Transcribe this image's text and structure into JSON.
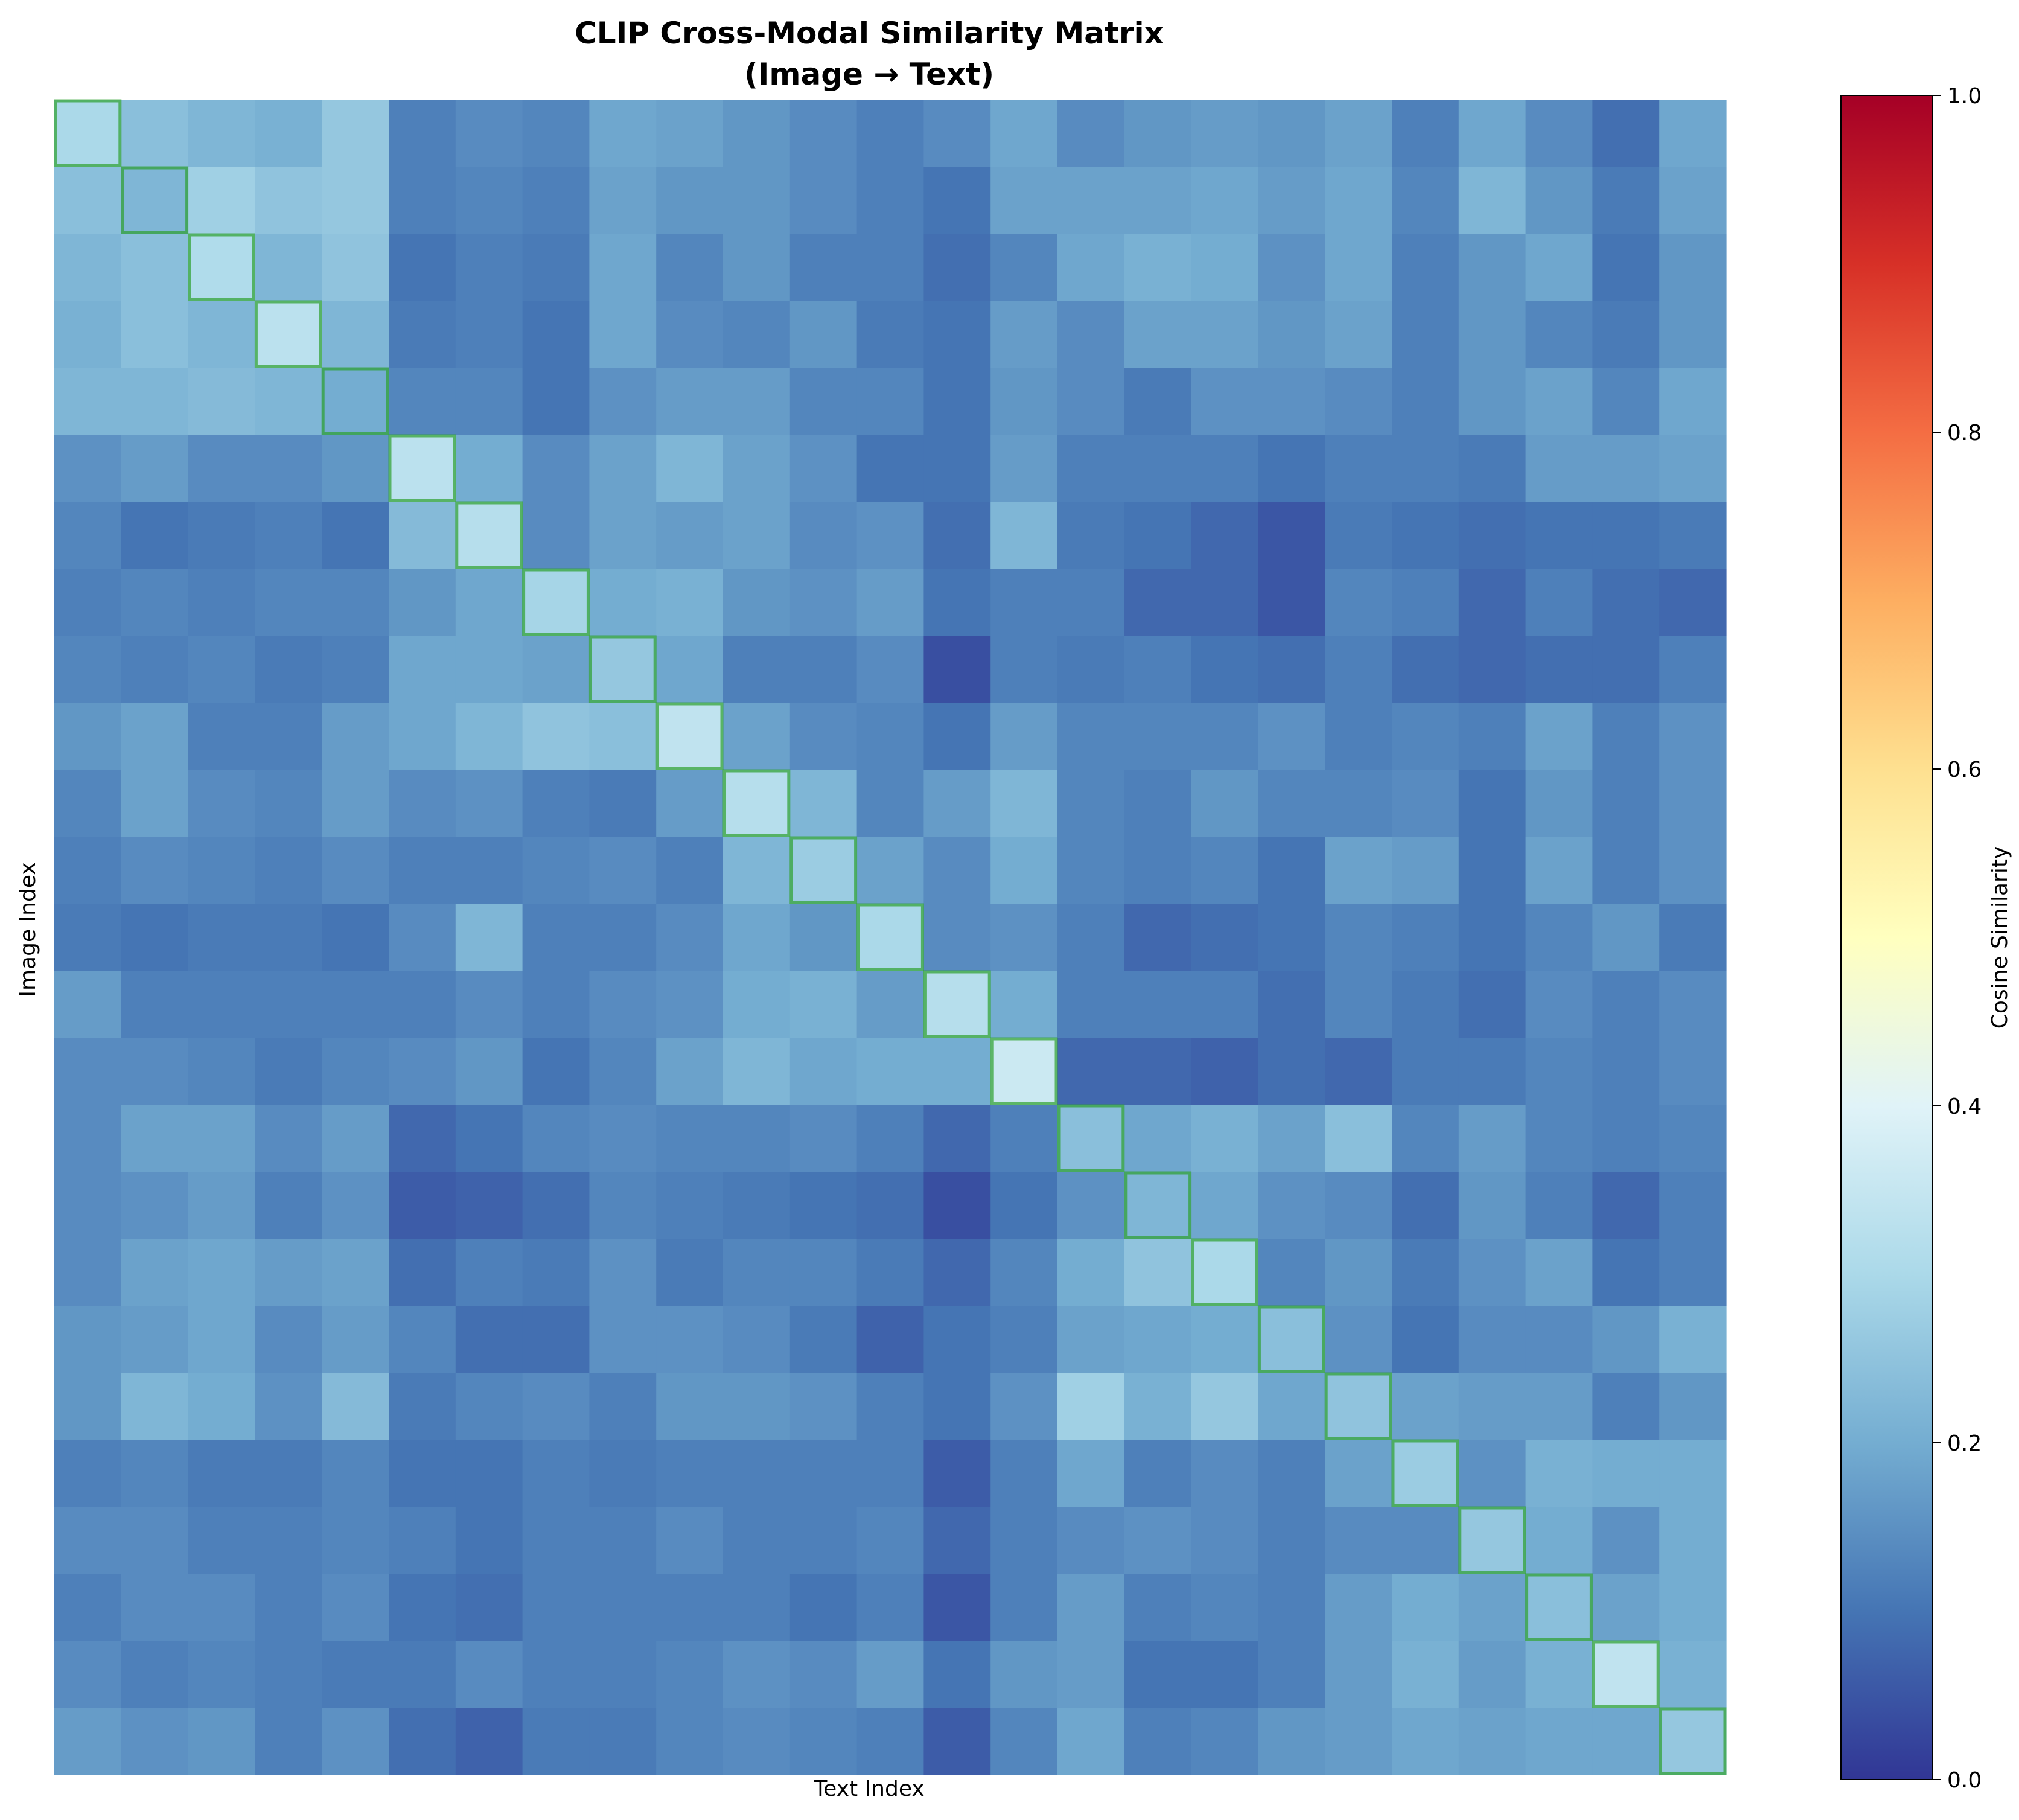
{
  "chart_data": {
    "type": "heatmap",
    "title": "CLIP Cross-Modal Similarity Matrix",
    "subtitle": "(Image → Text)",
    "xlabel": "Text Index",
    "ylabel": "Image Index",
    "colorbar_label": "Cosine Similarity",
    "colormap": "RdYlBu_r",
    "value_range": [
      0,
      1
    ],
    "colorbar_ticks": [
      "0.0",
      "0.2",
      "0.4",
      "0.6",
      "0.8",
      "1.0"
    ],
    "colorbar_tick_values": [
      0,
      0.2,
      0.4,
      0.6,
      0.8,
      1.0
    ],
    "diagonal_highlight_color": "#2ca02c",
    "rows": 25,
    "cols": 25,
    "values": [
      [
        0.3,
        0.24,
        0.22,
        0.21,
        0.26,
        0.12,
        0.14,
        0.13,
        0.19,
        0.18,
        0.16,
        0.14,
        0.12,
        0.14,
        0.19,
        0.14,
        0.16,
        0.17,
        0.16,
        0.18,
        0.12,
        0.19,
        0.14,
        0.09,
        0.19
      ],
      [
        0.24,
        0.22,
        0.28,
        0.25,
        0.26,
        0.12,
        0.13,
        0.12,
        0.18,
        0.16,
        0.16,
        0.14,
        0.12,
        0.1,
        0.18,
        0.18,
        0.18,
        0.19,
        0.17,
        0.19,
        0.13,
        0.22,
        0.16,
        0.11,
        0.18
      ],
      [
        0.22,
        0.24,
        0.31,
        0.22,
        0.25,
        0.1,
        0.12,
        0.11,
        0.19,
        0.13,
        0.16,
        0.12,
        0.12,
        0.09,
        0.13,
        0.19,
        0.21,
        0.2,
        0.15,
        0.19,
        0.12,
        0.16,
        0.19,
        0.1,
        0.16
      ],
      [
        0.21,
        0.24,
        0.22,
        0.33,
        0.22,
        0.11,
        0.12,
        0.1,
        0.19,
        0.14,
        0.13,
        0.16,
        0.11,
        0.1,
        0.17,
        0.14,
        0.18,
        0.18,
        0.16,
        0.18,
        0.12,
        0.16,
        0.13,
        0.11,
        0.16
      ],
      [
        0.22,
        0.22,
        0.23,
        0.22,
        0.2,
        0.13,
        0.13,
        0.1,
        0.15,
        0.17,
        0.17,
        0.13,
        0.13,
        0.1,
        0.16,
        0.14,
        0.11,
        0.15,
        0.15,
        0.14,
        0.12,
        0.16,
        0.18,
        0.13,
        0.19
      ],
      [
        0.15,
        0.17,
        0.14,
        0.14,
        0.16,
        0.33,
        0.2,
        0.14,
        0.18,
        0.22,
        0.18,
        0.15,
        0.1,
        0.1,
        0.17,
        0.12,
        0.12,
        0.12,
        0.1,
        0.12,
        0.12,
        0.11,
        0.17,
        0.17,
        0.18
      ],
      [
        0.13,
        0.1,
        0.11,
        0.12,
        0.1,
        0.23,
        0.32,
        0.14,
        0.18,
        0.17,
        0.18,
        0.14,
        0.15,
        0.09,
        0.22,
        0.11,
        0.1,
        0.08,
        0.05,
        0.11,
        0.1,
        0.09,
        0.1,
        0.1,
        0.11
      ],
      [
        0.12,
        0.13,
        0.12,
        0.13,
        0.13,
        0.16,
        0.19,
        0.29,
        0.2,
        0.21,
        0.16,
        0.15,
        0.17,
        0.1,
        0.12,
        0.12,
        0.08,
        0.08,
        0.05,
        0.13,
        0.12,
        0.08,
        0.12,
        0.09,
        0.08
      ],
      [
        0.13,
        0.12,
        0.13,
        0.11,
        0.12,
        0.19,
        0.19,
        0.18,
        0.26,
        0.19,
        0.12,
        0.12,
        0.14,
        0.04,
        0.12,
        0.11,
        0.12,
        0.1,
        0.09,
        0.12,
        0.09,
        0.08,
        0.09,
        0.09,
        0.12
      ],
      [
        0.16,
        0.18,
        0.12,
        0.12,
        0.17,
        0.19,
        0.22,
        0.25,
        0.24,
        0.34,
        0.18,
        0.14,
        0.13,
        0.1,
        0.17,
        0.13,
        0.13,
        0.13,
        0.15,
        0.12,
        0.13,
        0.12,
        0.18,
        0.12,
        0.15
      ],
      [
        0.13,
        0.18,
        0.14,
        0.13,
        0.17,
        0.14,
        0.15,
        0.12,
        0.11,
        0.17,
        0.32,
        0.22,
        0.13,
        0.17,
        0.22,
        0.13,
        0.12,
        0.16,
        0.13,
        0.13,
        0.14,
        0.1,
        0.16,
        0.12,
        0.15
      ],
      [
        0.12,
        0.14,
        0.13,
        0.12,
        0.14,
        0.12,
        0.12,
        0.13,
        0.14,
        0.12,
        0.22,
        0.27,
        0.18,
        0.14,
        0.2,
        0.13,
        0.12,
        0.13,
        0.1,
        0.18,
        0.17,
        0.1,
        0.18,
        0.12,
        0.15
      ],
      [
        0.11,
        0.1,
        0.11,
        0.11,
        0.1,
        0.14,
        0.22,
        0.12,
        0.12,
        0.14,
        0.19,
        0.16,
        0.3,
        0.14,
        0.15,
        0.12,
        0.08,
        0.09,
        0.1,
        0.13,
        0.12,
        0.1,
        0.13,
        0.16,
        0.11
      ],
      [
        0.17,
        0.12,
        0.12,
        0.12,
        0.12,
        0.12,
        0.14,
        0.12,
        0.14,
        0.15,
        0.2,
        0.21,
        0.17,
        0.32,
        0.2,
        0.12,
        0.12,
        0.12,
        0.09,
        0.13,
        0.11,
        0.09,
        0.14,
        0.12,
        0.14
      ],
      [
        0.14,
        0.14,
        0.13,
        0.11,
        0.13,
        0.14,
        0.16,
        0.1,
        0.13,
        0.18,
        0.22,
        0.19,
        0.2,
        0.2,
        0.36,
        0.08,
        0.08,
        0.07,
        0.09,
        0.08,
        0.11,
        0.11,
        0.13,
        0.12,
        0.14
      ],
      [
        0.14,
        0.18,
        0.18,
        0.14,
        0.17,
        0.08,
        0.1,
        0.13,
        0.14,
        0.13,
        0.13,
        0.14,
        0.12,
        0.08,
        0.12,
        0.24,
        0.19,
        0.21,
        0.18,
        0.24,
        0.13,
        0.17,
        0.13,
        0.12,
        0.13
      ],
      [
        0.14,
        0.15,
        0.17,
        0.12,
        0.15,
        0.06,
        0.07,
        0.09,
        0.13,
        0.12,
        0.11,
        0.1,
        0.09,
        0.04,
        0.1,
        0.15,
        0.22,
        0.19,
        0.15,
        0.14,
        0.09,
        0.16,
        0.12,
        0.08,
        0.12
      ],
      [
        0.14,
        0.18,
        0.19,
        0.17,
        0.18,
        0.09,
        0.12,
        0.11,
        0.15,
        0.11,
        0.13,
        0.13,
        0.11,
        0.08,
        0.13,
        0.2,
        0.25,
        0.3,
        0.13,
        0.16,
        0.11,
        0.15,
        0.18,
        0.1,
        0.12
      ],
      [
        0.16,
        0.17,
        0.19,
        0.14,
        0.17,
        0.13,
        0.09,
        0.09,
        0.15,
        0.15,
        0.14,
        0.11,
        0.07,
        0.1,
        0.12,
        0.18,
        0.19,
        0.2,
        0.24,
        0.15,
        0.1,
        0.14,
        0.14,
        0.16,
        0.21
      ],
      [
        0.16,
        0.22,
        0.2,
        0.15,
        0.23,
        0.11,
        0.13,
        0.14,
        0.12,
        0.16,
        0.16,
        0.15,
        0.12,
        0.1,
        0.15,
        0.28,
        0.21,
        0.26,
        0.19,
        0.25,
        0.18,
        0.17,
        0.17,
        0.12,
        0.16
      ],
      [
        0.12,
        0.13,
        0.11,
        0.11,
        0.13,
        0.1,
        0.1,
        0.12,
        0.11,
        0.12,
        0.12,
        0.12,
        0.12,
        0.06,
        0.12,
        0.19,
        0.12,
        0.14,
        0.12,
        0.18,
        0.27,
        0.15,
        0.21,
        0.2,
        0.2
      ],
      [
        0.14,
        0.14,
        0.12,
        0.12,
        0.13,
        0.12,
        0.1,
        0.12,
        0.12,
        0.14,
        0.12,
        0.12,
        0.13,
        0.08,
        0.12,
        0.14,
        0.15,
        0.14,
        0.12,
        0.14,
        0.14,
        0.26,
        0.2,
        0.15,
        0.2
      ],
      [
        0.12,
        0.14,
        0.14,
        0.12,
        0.14,
        0.1,
        0.09,
        0.12,
        0.12,
        0.12,
        0.12,
        0.1,
        0.12,
        0.05,
        0.12,
        0.17,
        0.12,
        0.13,
        0.12,
        0.17,
        0.2,
        0.18,
        0.24,
        0.18,
        0.2
      ],
      [
        0.14,
        0.12,
        0.13,
        0.12,
        0.11,
        0.11,
        0.14,
        0.12,
        0.12,
        0.13,
        0.15,
        0.14,
        0.17,
        0.1,
        0.16,
        0.17,
        0.1,
        0.1,
        0.12,
        0.17,
        0.21,
        0.17,
        0.21,
        0.34,
        0.21
      ],
      [
        0.17,
        0.15,
        0.16,
        0.12,
        0.15,
        0.09,
        0.07,
        0.11,
        0.11,
        0.13,
        0.14,
        0.13,
        0.12,
        0.06,
        0.13,
        0.19,
        0.12,
        0.13,
        0.16,
        0.17,
        0.19,
        0.18,
        0.19,
        0.19,
        0.26
      ]
    ]
  }
}
